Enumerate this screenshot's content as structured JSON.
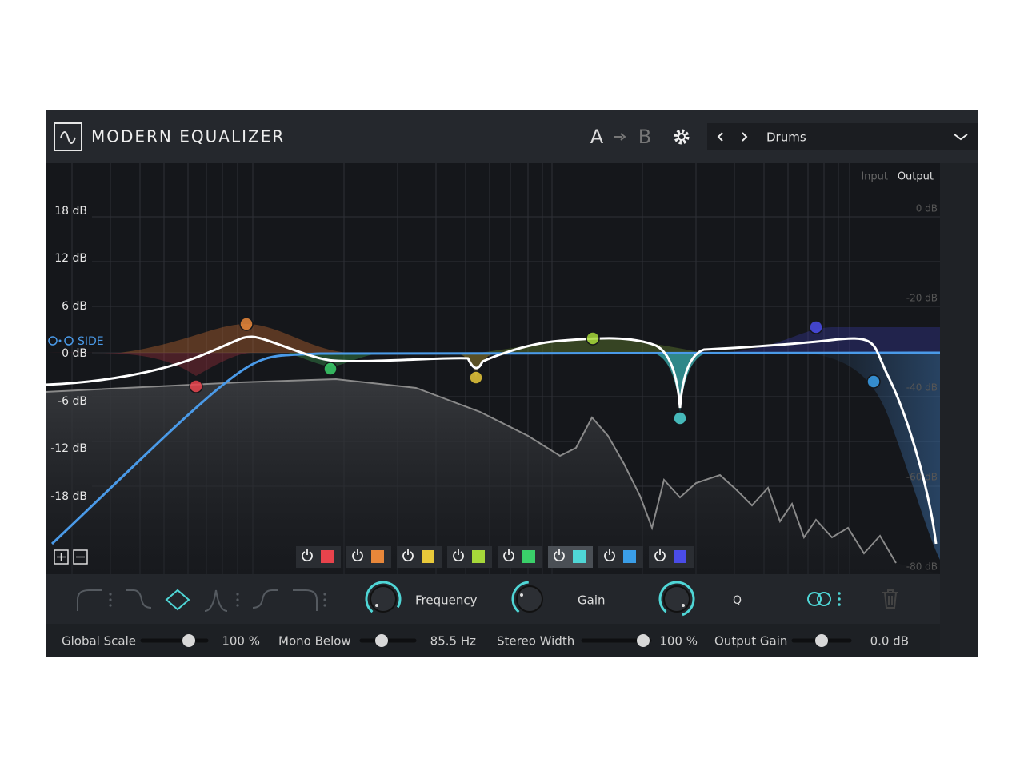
{
  "header": {
    "title": "MODERN EQUALIZER",
    "a": "A",
    "b": "B",
    "preset": "Drums"
  },
  "graph": {
    "gain_labels": [
      "18 dB",
      "12 dB",
      "6 dB",
      "0 dB",
      "-6 dB",
      "-12 dB",
      "-18 dB"
    ],
    "meter_labels": [
      "Input",
      "Output"
    ],
    "meter_scale": [
      "0 dB",
      "-20 dB",
      "-40 dB",
      "-60 dB",
      "-80 dB"
    ],
    "side_label": "SIDE"
  },
  "band_controls": {
    "labels": [
      "Frequency",
      "Gain",
      "Q"
    ]
  },
  "footer": {
    "controls": [
      {
        "label": "Global Scale",
        "value": "100 %"
      },
      {
        "label": "Mono Below",
        "value": "85.5 Hz"
      },
      {
        "label": "Stereo Width",
        "value": "100 %"
      },
      {
        "label": "Output Gain",
        "value": "0.0 dB"
      }
    ]
  }
}
